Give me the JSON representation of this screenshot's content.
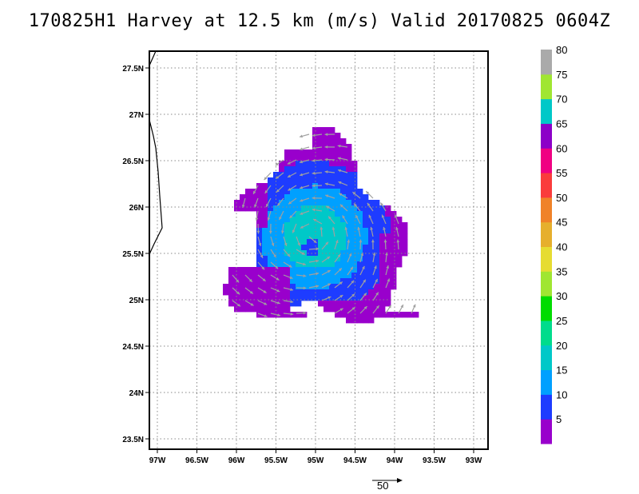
{
  "title": "170825H1 Harvey at 12.5 km (m/s) Valid 20170825 0604Z",
  "x_ticks": [
    "97W",
    "96.5W",
    "96W",
    "95.5W",
    "95W",
    "94.5W",
    "94W",
    "93.5W",
    "93W"
  ],
  "y_ticks": [
    "27.5N",
    "27N",
    "26.5N",
    "26N",
    "25.5N",
    "25N",
    "24.5N",
    "24N",
    "23.5N"
  ],
  "colorbar": {
    "labels": [
      "5",
      "10",
      "15",
      "20",
      "25",
      "30",
      "35",
      "40",
      "45",
      "50",
      "55",
      "60",
      "65",
      "70",
      "75",
      "80"
    ],
    "colors": [
      "#9900cc",
      "#1e3cff",
      "#00a0ff",
      "#00c8c8",
      "#00dc8c",
      "#00dc00",
      "#a0e632",
      "#e6dc32",
      "#e6af2d",
      "#f08228",
      "#fa3c3c",
      "#f00082",
      "#8c00c8",
      "#00c8c8",
      "#a0e632",
      "#aaaaaa"
    ]
  },
  "wind_field": {
    "center": {
      "lon": -95.05,
      "lat": 25.7
    },
    "eye": {
      "lon": -95.1,
      "lat": 25.6
    }
  },
  "reference_vector": {
    "label": "50",
    "units": "m/s"
  },
  "colors": {
    "coast": "#000000",
    "grid": "#888888",
    "arrow": "#a0a0a0"
  }
}
